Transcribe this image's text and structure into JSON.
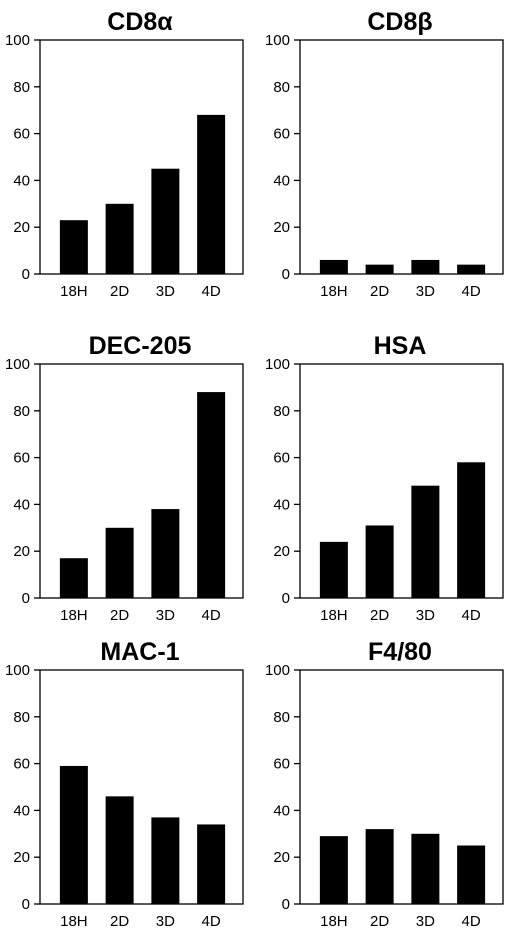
{
  "chart_data": [
    {
      "type": "bar",
      "title": "CD8α",
      "categories": [
        "18H",
        "2D",
        "3D",
        "4D"
      ],
      "values": [
        23,
        30,
        45,
        68
      ],
      "ylim": [
        0,
        100
      ],
      "yticks": [
        "0",
        "20",
        "40",
        "60",
        "80",
        "100"
      ],
      "xlabel": "",
      "ylabel": ""
    },
    {
      "type": "bar",
      "title": "CD8β",
      "categories": [
        "18H",
        "2D",
        "3D",
        "4D"
      ],
      "values": [
        6,
        4,
        6,
        4
      ],
      "ylim": [
        0,
        100
      ],
      "yticks": [
        "0",
        "20",
        "40",
        "60",
        "80",
        "100"
      ],
      "xlabel": "",
      "ylabel": ""
    },
    {
      "type": "bar",
      "title": "DEC-205",
      "categories": [
        "18H",
        "2D",
        "3D",
        "4D"
      ],
      "values": [
        17,
        30,
        38,
        88
      ],
      "ylim": [
        0,
        100
      ],
      "yticks": [
        "0",
        "20",
        "40",
        "60",
        "80",
        "100"
      ],
      "xlabel": "",
      "ylabel": ""
    },
    {
      "type": "bar",
      "title": "HSA",
      "categories": [
        "18H",
        "2D",
        "3D",
        "4D"
      ],
      "values": [
        24,
        31,
        48,
        58
      ],
      "ylim": [
        0,
        100
      ],
      "yticks": [
        "0",
        "20",
        "40",
        "60",
        "80",
        "100"
      ],
      "xlabel": "",
      "ylabel": ""
    },
    {
      "type": "bar",
      "title": "MAC-1",
      "categories": [
        "18H",
        "2D",
        "3D",
        "4D"
      ],
      "values": [
        59,
        46,
        37,
        34
      ],
      "ylim": [
        0,
        100
      ],
      "yticks": [
        "0",
        "20",
        "40",
        "60",
        "80",
        "100"
      ],
      "xlabel": "",
      "ylabel": ""
    },
    {
      "type": "bar",
      "title": "F4/80",
      "categories": [
        "18H",
        "2D",
        "3D",
        "4D"
      ],
      "values": [
        29,
        32,
        30,
        25
      ],
      "ylim": [
        0,
        100
      ],
      "yticks": [
        "0",
        "20",
        "40",
        "60",
        "80",
        "100"
      ],
      "xlabel": "",
      "ylabel": ""
    }
  ],
  "colors": {
    "bar": "#000000",
    "axis": "#000000",
    "background": "#ffffff"
  }
}
